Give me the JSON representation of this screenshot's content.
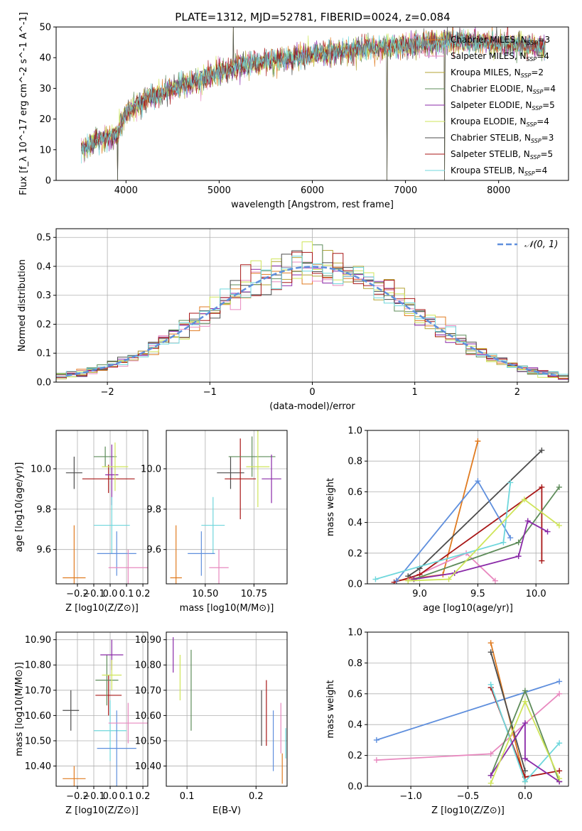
{
  "figure": {
    "title": "PLATE=1312, MJD=52781, FIBERID=0024, z=0.084",
    "series_colors": [
      "#e07b20",
      "#e889bf",
      "#b3a335",
      "#5e8c5a",
      "#8a2aa8",
      "#cfe55a",
      "#4c4c4c",
      "#a81717",
      "#6fd7dc"
    ],
    "bestfit_colors": [
      "#5f8fdd",
      "#e07b20",
      "#e889bf",
      "#4c4c4c",
      "#a81717",
      "#6fd7dc",
      "#5e8c5a",
      "#8a2aa8",
      "#cfe55a"
    ]
  },
  "chart_data": [
    {
      "type": "line",
      "panel": "spectrum",
      "xlabel": "wavelength [Angstrom, rest frame]",
      "ylabel": "Flux [f_λ 10^-17 erg cm^-2 s^-1 A^-1]",
      "xlim": [
        3250,
        8750
      ],
      "ylim": [
        0,
        50
      ],
      "xticks": [
        4000,
        5000,
        6000,
        7000,
        8000
      ],
      "yticks": [
        0,
        10,
        20,
        30,
        40,
        50
      ],
      "grid": false,
      "legend_position": "top-right",
      "spectrum_envelope": {
        "x": [
          3520,
          3700,
          3900,
          4000,
          4200,
          4500,
          4800,
          5000,
          5200,
          5500,
          5800,
          6000,
          6300,
          6600,
          7000,
          7300,
          7500,
          7800,
          8000,
          8300,
          8500
        ],
        "y": [
          10,
          13,
          15,
          22,
          26,
          30,
          33,
          35,
          37,
          39,
          40,
          41,
          42,
          43,
          44,
          45,
          45.5,
          45,
          44.5,
          44,
          43
        ]
      },
      "noise_amplitude": 4,
      "spikes": [
        {
          "x": 3910,
          "y": 0
        },
        {
          "x": 6800,
          "y": 0
        },
        {
          "x": 7420,
          "y": 0
        },
        {
          "x": 5150,
          "y": 50
        },
        {
          "x": 5920,
          "y": 36
        }
      ],
      "series": [
        {
          "name": "Chabrier MILES",
          "nssp": "3"
        },
        {
          "name": "Salpeter MILES",
          "nssp": "4"
        },
        {
          "name": "Kroupa MILES",
          "nssp": "2"
        },
        {
          "name": "Chabrier ELODIE",
          "nssp": "4"
        },
        {
          "name": "Salpeter ELODIE",
          "nssp": "5"
        },
        {
          "name": "Kroupa ELODIE",
          "nssp": "4"
        },
        {
          "name": "Chabrier STELIB",
          "nssp": "3"
        },
        {
          "name": "Salpeter STELIB",
          "nssp": "5"
        },
        {
          "name": "Kroupa STELIB",
          "nssp": "4"
        }
      ]
    },
    {
      "type": "histogram",
      "panel": "residuals",
      "xlabel": "(data-model)/error",
      "ylabel": "Normed distribution",
      "xlim": [
        -2.5,
        2.5
      ],
      "ylim": [
        0,
        0.53
      ],
      "xticks": [
        -2,
        -1,
        0,
        1,
        2
      ],
      "yticks": [
        0.0,
        0.1,
        0.2,
        0.3,
        0.4,
        0.5
      ],
      "grid": true,
      "legend_position": "top-right",
      "reference_curve": {
        "name": "𝒩(0, 1)",
        "style": "dashed",
        "color": "#5f8fdd"
      },
      "bin_width": 0.1
    },
    {
      "type": "scatter",
      "panel": "age-vs-Z",
      "xlabel": "Z [log10(Z/Z⊙)]",
      "ylabel": "age  [log10(age/yr)]",
      "xlim": [
        -0.33,
        0.23
      ],
      "ylim": [
        9.43,
        10.19
      ],
      "xticks": [
        -0.2,
        -0.1,
        0.0,
        0.1,
        0.2
      ],
      "yticks": [
        9.6,
        9.8,
        10.0
      ],
      "grid": true,
      "points": [
        {
          "x": -0.22,
          "y": 9.46,
          "ex": 0.07,
          "ey": 0.26,
          "color": "#e07b20"
        },
        {
          "x": -0.22,
          "y": 9.98,
          "ex": 0.05,
          "ey": 0.08,
          "color": "#4c4c4c"
        },
        {
          "x": -0.01,
          "y": 9.95,
          "ex": 0.16,
          "ey": 0.07,
          "color": "#a81717"
        },
        {
          "x": -0.03,
          "y": 10.06,
          "ex": 0.07,
          "ey": 0.05,
          "color": "#5e8c5a"
        },
        {
          "x": 0.01,
          "y": 9.97,
          "ex": 0.04,
          "ey": 0.15,
          "color": "#8a2aa8"
        },
        {
          "x": 0.03,
          "y": 10.01,
          "ex": 0.08,
          "ey": 0.12,
          "color": "#cfe55a"
        },
        {
          "x": 0.01,
          "y": 9.72,
          "ex": 0.11,
          "ey": 0.14,
          "color": "#6fd7dc"
        },
        {
          "x": 0.04,
          "y": 9.58,
          "ex": 0.12,
          "ey": 0.11,
          "color": "#5f8fdd"
        },
        {
          "x": 0.11,
          "y": 9.51,
          "ex": 0.12,
          "ey": 0.09,
          "color": "#e889bf"
        }
      ]
    },
    {
      "type": "scatter",
      "panel": "age-vs-mass",
      "xlabel": "mass [log10(M/M⊙)]",
      "ylabel": "",
      "xlim": [
        10.3,
        10.92
      ],
      "ylim": [
        9.43,
        10.19
      ],
      "xticks": [
        10.5,
        10.75
      ],
      "xticklabels": [
        "10.50",
        "10.75"
      ],
      "yticks": [
        9.6,
        9.8,
        10.0
      ],
      "grid": true,
      "points": [
        {
          "x": 10.35,
          "y": 9.46,
          "ex": 0.03,
          "ey": 0.26,
          "color": "#e07b20"
        },
        {
          "x": 10.63,
          "y": 9.98,
          "ex": 0.07,
          "ey": 0.08,
          "color": "#4c4c4c"
        },
        {
          "x": 10.68,
          "y": 9.95,
          "ex": 0.08,
          "ey": 0.2,
          "color": "#a81717"
        },
        {
          "x": 10.74,
          "y": 10.06,
          "ex": 0.12,
          "ey": 0.1,
          "color": "#5e8c5a"
        },
        {
          "x": 10.84,
          "y": 9.95,
          "ex": 0.05,
          "ey": 0.12,
          "color": "#8a2aa8"
        },
        {
          "x": 10.77,
          "y": 10.01,
          "ex": 0.06,
          "ey": 0.2,
          "color": "#cfe55a"
        },
        {
          "x": 10.54,
          "y": 9.72,
          "ex": 0.06,
          "ey": 0.14,
          "color": "#6fd7dc"
        },
        {
          "x": 10.48,
          "y": 9.58,
          "ex": 0.07,
          "ey": 0.11,
          "color": "#5f8fdd"
        },
        {
          "x": 10.57,
          "y": 9.51,
          "ex": 0.05,
          "ey": 0.09,
          "color": "#e889bf"
        }
      ]
    },
    {
      "type": "line",
      "panel": "weight-vs-age",
      "xlabel": "age  [log10(age/yr)]",
      "ylabel": "mass weight",
      "xlim": [
        8.55,
        10.28
      ],
      "ylim": [
        0,
        1
      ],
      "xticks": [
        9.0,
        9.5,
        10.0
      ],
      "yticks": [
        0.0,
        0.2,
        0.4,
        0.6,
        0.8,
        1.0
      ],
      "grid": true,
      "series": [
        {
          "color": "#e07b20",
          "points": [
            [
              8.8,
              0.02
            ],
            [
              9.2,
              0.06
            ],
            [
              9.5,
              0.93
            ]
          ]
        },
        {
          "color": "#e889bf",
          "points": [
            [
              8.9,
              0.03
            ],
            [
              9.4,
              0.2
            ],
            [
              9.65,
              0.02
            ]
          ]
        },
        {
          "color": "#4c4c4c",
          "points": [
            [
              8.9,
              0.05
            ],
            [
              9.0,
              0.1
            ],
            [
              10.05,
              0.87
            ]
          ]
        },
        {
          "color": "#a81717",
          "points": [
            [
              8.78,
              0.01
            ],
            [
              9.0,
              0.06
            ],
            [
              10.05,
              0.63
            ],
            [
              10.05,
              0.15
            ]
          ]
        },
        {
          "color": "#5f8fdd",
          "points": [
            [
              8.8,
              0.02
            ],
            [
              9.5,
              0.67
            ],
            [
              9.78,
              0.3
            ]
          ]
        },
        {
          "color": "#6fd7dc",
          "points": [
            [
              8.62,
              0.03
            ],
            [
              9.72,
              0.27
            ],
            [
              9.78,
              0.66
            ]
          ]
        },
        {
          "color": "#5e8c5a",
          "points": [
            [
              8.95,
              0.03
            ],
            [
              9.85,
              0.27
            ],
            [
              10.2,
              0.63
            ]
          ]
        },
        {
          "color": "#8a2aa8",
          "points": [
            [
              8.95,
              0.03
            ],
            [
              9.3,
              0.07
            ],
            [
              9.85,
              0.18
            ],
            [
              9.93,
              0.41
            ],
            [
              10.1,
              0.34
            ]
          ]
        },
        {
          "color": "#cfe55a",
          "points": [
            [
              8.9,
              0.02
            ],
            [
              9.25,
              0.03
            ],
            [
              9.9,
              0.55
            ],
            [
              10.2,
              0.38
            ]
          ]
        }
      ]
    },
    {
      "type": "scatter",
      "panel": "mass-vs-Z",
      "xlabel": "Z [log10(Z/Z⊙)]",
      "ylabel": "mass [log10(M/M⊙)]",
      "xlim": [
        -0.33,
        0.23
      ],
      "ylim": [
        10.32,
        10.93
      ],
      "xticks": [
        -0.2,
        -0.1,
        0.0,
        0.1,
        0.2
      ],
      "yticks": [
        10.4,
        10.5,
        10.6,
        10.7,
        10.8,
        10.9
      ],
      "grid": true,
      "points": [
        {
          "x": -0.22,
          "y": 10.35,
          "ex": 0.07,
          "ey": 0.05,
          "color": "#e07b20"
        },
        {
          "x": -0.24,
          "y": 10.62,
          "ex": 0.05,
          "ey": 0.08,
          "color": "#4c4c4c"
        },
        {
          "x": -0.01,
          "y": 10.68,
          "ex": 0.08,
          "ey": 0.08,
          "color": "#a81717"
        },
        {
          "x": -0.02,
          "y": 10.74,
          "ex": 0.07,
          "ey": 0.1,
          "color": "#5e8c5a"
        },
        {
          "x": 0.01,
          "y": 10.84,
          "ex": 0.07,
          "ey": 0.06,
          "color": "#8a2aa8"
        },
        {
          "x": 0.01,
          "y": 10.76,
          "ex": 0.06,
          "ey": 0.06,
          "color": "#cfe55a"
        },
        {
          "x": 0.0,
          "y": 10.54,
          "ex": 0.1,
          "ey": 0.12,
          "color": "#6fd7dc"
        },
        {
          "x": 0.04,
          "y": 10.47,
          "ex": 0.12,
          "ey": 0.15,
          "color": "#5f8fdd"
        },
        {
          "x": 0.11,
          "y": 10.57,
          "ex": 0.12,
          "ey": 0.08,
          "color": "#e889bf"
        }
      ]
    },
    {
      "type": "errorbar",
      "panel": "mass-vs-EBV",
      "xlabel": "E(B-V)",
      "ylabel": "",
      "xlim": [
        0.07,
        0.245
      ],
      "ylim": [
        10.32,
        10.93
      ],
      "xticks": [
        0.1,
        0.2
      ],
      "yticks": [
        10.4,
        10.5,
        10.6,
        10.7,
        10.8,
        10.9
      ],
      "grid": true,
      "points": [
        {
          "x": 0.08,
          "y": 10.84,
          "ey": 0.07,
          "color": "#8a2aa8"
        },
        {
          "x": 0.09,
          "y": 10.75,
          "ey": 0.09,
          "color": "#cfe55a"
        },
        {
          "x": 0.106,
          "y": 10.7,
          "ey": 0.16,
          "color": "#5e8c5a"
        },
        {
          "x": 0.208,
          "y": 10.59,
          "ey": 0.11,
          "color": "#4c4c4c"
        },
        {
          "x": 0.215,
          "y": 10.61,
          "ey": 0.13,
          "color": "#a81717"
        },
        {
          "x": 0.225,
          "y": 10.5,
          "ey": 0.12,
          "color": "#5f8fdd"
        },
        {
          "x": 0.236,
          "y": 10.55,
          "ey": 0.1,
          "color": "#e889bf"
        },
        {
          "x": 0.238,
          "y": 10.39,
          "ey": 0.06,
          "color": "#e07b20"
        },
        {
          "x": 0.243,
          "y": 10.49,
          "ey": 0.06,
          "color": "#6fd7dc"
        }
      ]
    },
    {
      "type": "line",
      "panel": "weight-vs-Z",
      "xlabel": "Z [log10(Z/Z⊙)]",
      "ylabel": "mass weight",
      "xlim": [
        -1.38,
        0.38
      ],
      "ylim": [
        0,
        1
      ],
      "xticks": [
        -1.0,
        -0.5,
        0.0
      ],
      "yticks": [
        0.0,
        0.2,
        0.4,
        0.6,
        0.8,
        1.0
      ],
      "grid": true,
      "series": [
        {
          "color": "#5f8fdd",
          "points": [
            [
              -1.3,
              0.3
            ],
            [
              0.3,
              0.68
            ]
          ]
        },
        {
          "color": "#e889bf",
          "points": [
            [
              -1.3,
              0.17
            ],
            [
              -0.3,
              0.21
            ],
            [
              0.3,
              0.6
            ]
          ]
        },
        {
          "color": "#e07b20",
          "points": [
            [
              -0.3,
              0.93
            ],
            [
              0.0,
              0.03
            ]
          ]
        },
        {
          "color": "#4c4c4c",
          "points": [
            [
              -0.3,
              0.87
            ],
            [
              0.0,
              0.1
            ]
          ]
        },
        {
          "color": "#a81717",
          "points": [
            [
              -0.3,
              0.64
            ],
            [
              0.0,
              0.06
            ],
            [
              0.3,
              0.1
            ]
          ]
        },
        {
          "color": "#6fd7dc",
          "points": [
            [
              -0.3,
              0.66
            ],
            [
              0.0,
              0.03
            ],
            [
              0.3,
              0.28
            ]
          ]
        },
        {
          "color": "#5e8c5a",
          "points": [
            [
              -0.3,
              0.07
            ],
            [
              0.0,
              0.62
            ],
            [
              0.3,
              0.03
            ]
          ]
        },
        {
          "color": "#8a2aa8",
          "points": [
            [
              -0.3,
              0.07
            ],
            [
              0.0,
              0.41
            ],
            [
              0.0,
              0.18
            ],
            [
              0.3,
              0.03
            ]
          ]
        },
        {
          "color": "#cfe55a",
          "points": [
            [
              -0.3,
              0.02
            ],
            [
              0.0,
              0.55
            ],
            [
              0.3,
              0.05
            ]
          ]
        }
      ]
    }
  ]
}
